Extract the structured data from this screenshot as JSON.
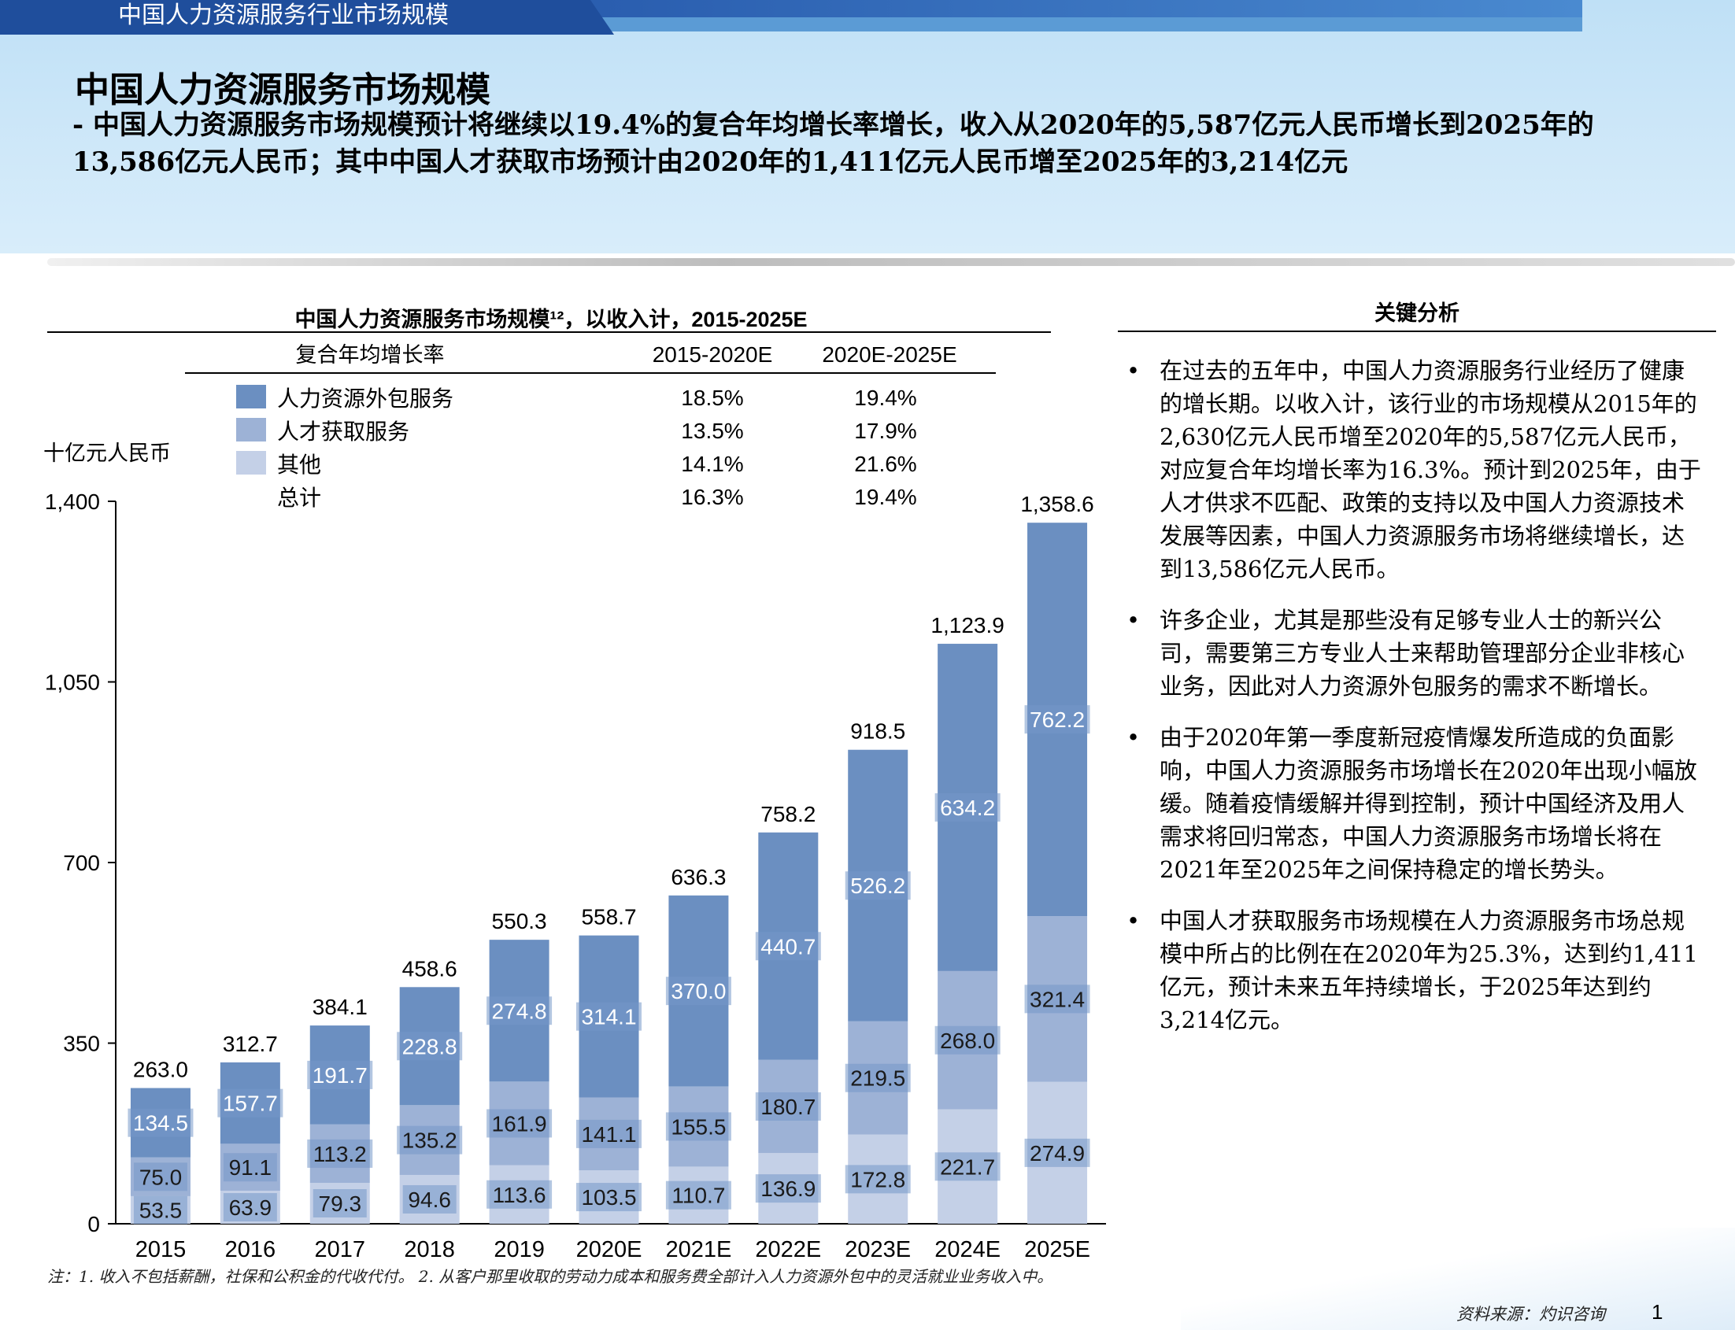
{
  "header": {
    "section_title": "中国人力资源服务行业市场规模"
  },
  "page": {
    "title": "中国人力资源服务市场规模",
    "subtitle": "- 中国人力资源服务市场规模预计将继续以19.4%的复合年均增长率增长，收入从2020年的5,587亿元人民币增长到2025年的13,586亿元人民币；其中中国人才获取市场预计由2020年的1,411亿元人民币增至2025年的3,214亿元"
  },
  "colors": {
    "series1": "#6b8fc1",
    "series2": "#9db2d6",
    "series3": "#c4d0e7",
    "label_box": "#7597c8"
  },
  "chart_data": {
    "type": "bar",
    "stacked": true,
    "title": "中国人力资源服务市场规模¹²，以收入计，2015-2025E",
    "ylabel": "十亿元人民币",
    "ylim": [
      0,
      1400
    ],
    "yticks": [
      "0",
      "350",
      "700",
      "1,050",
      "1,400"
    ],
    "categories": [
      "2015",
      "2016",
      "2017",
      "2018",
      "2019",
      "2020E",
      "2021E",
      "2022E",
      "2023E",
      "2024E",
      "2025E"
    ],
    "series": [
      {
        "name": "其他",
        "values": [
          53.5,
          63.9,
          79.3,
          94.6,
          113.6,
          103.5,
          110.7,
          136.9,
          172.8,
          221.7,
          274.9
        ],
        "labels": [
          "53.5",
          "63.9",
          "79.3",
          "94.6",
          "113.6",
          "103.5",
          "110.7",
          "136.9",
          "172.8",
          "221.7",
          "274.9"
        ]
      },
      {
        "name": "人才获取服务",
        "values": [
          75.0,
          91.1,
          113.2,
          135.2,
          161.9,
          141.1,
          155.5,
          180.7,
          219.5,
          268.0,
          321.4
        ],
        "labels": [
          "75.0",
          "91.1",
          "113.2",
          "135.2",
          "161.9",
          "141.1",
          "155.5",
          "180.7",
          "219.5",
          "268.0",
          "321.4"
        ]
      },
      {
        "name": "人力资源外包服务",
        "values": [
          134.5,
          157.7,
          191.7,
          228.8,
          274.8,
          314.1,
          370.0,
          440.7,
          526.2,
          634.2,
          762.2
        ],
        "labels": [
          "134.5",
          "157.7",
          "191.7",
          "228.8",
          "274.8",
          "314.1",
          "370.0",
          "440.7",
          "526.2",
          "634.2",
          "762.2"
        ]
      }
    ],
    "totals": [
      263.0,
      312.7,
      384.1,
      458.6,
      550.3,
      558.7,
      636.3,
      758.2,
      918.5,
      1123.9,
      1358.6
    ],
    "total_labels": [
      "263.0",
      "312.7",
      "384.1",
      "458.6",
      "550.3",
      "558.7",
      "636.3",
      "758.2",
      "918.5",
      "1,123.9",
      "1,358.6"
    ],
    "cagr_table": {
      "heading": "复合年均增长率",
      "columns": [
        "2015-2020E",
        "2020E-2025E"
      ],
      "rows": [
        {
          "name": "人力资源外包服务",
          "values": [
            "18.5%",
            "19.4%"
          ]
        },
        {
          "name": "人才获取服务",
          "values": [
            "13.5%",
            "17.9%"
          ]
        },
        {
          "name": "其他",
          "values": [
            "14.1%",
            "21.6%"
          ]
        },
        {
          "name": "总计",
          "values": [
            "16.3%",
            "19.4%"
          ]
        }
      ]
    }
  },
  "analysis": {
    "title": "关键分析",
    "bullet": "•",
    "items": [
      "在过去的五年中，中国人力资源服务行业经历了健康的增长期。以收入计，该行业的市场规模从2015年的2,630亿元人民币增至2020年的5,587亿元人民币，对应复合年均增长率为16.3%。预计到2025年，由于人才供求不匹配、政策的支持以及中国人力资源技术发展等因素，中国人力资源服务市场将继续增长，达到13,586亿元人民币。",
      "许多企业，尤其是那些没有足够专业人士的新兴公司，需要第三方专业人士来帮助管理部分企业非核心业务，因此对人力资源外包服务的需求不断增长。",
      "由于2020年第一季度新冠疫情爆发所造成的负面影响，中国人力资源服务市场增长在2020年出现小幅放缓。随着疫情缓解并得到控制，预计中国经济及用人需求将回归常态，中国人力资源服务市场增长将在2021年至2025年之间保持稳定的增长势头。",
      "中国人才获取服务市场规模在人力资源服务市场总规模中所占的比例在在2020年为25.3%，达到约1,411亿元，预计未来五年持续增长，于2025年达到约3,214亿元。"
    ]
  },
  "footnote": "注：1. 收入不包括薪酬，社保和公积金的代收代付。 2. 从客户那里收取的劳动力成本和服务费全部计入人力资源外包中的灵活就业业务收入中。",
  "source": "资料来源：灼识咨询",
  "page_number": "1"
}
